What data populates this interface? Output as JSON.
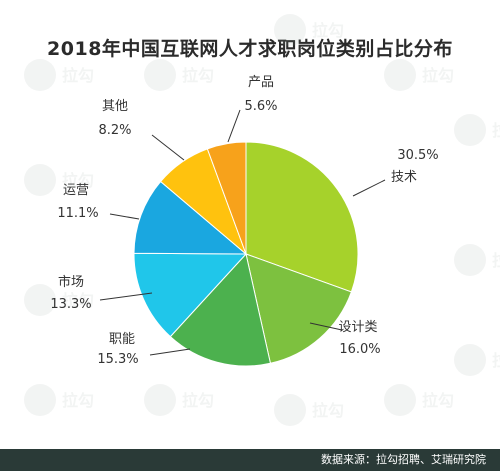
{
  "watermark": {
    "text": "拉勾"
  },
  "footer": {
    "source": "数据来源：拉勾招聘、艾瑞研究院"
  },
  "chart_data": {
    "type": "pie",
    "title": "2018年中国互联网人才求职岗位类别占比分布",
    "slices": [
      {
        "label": "技术",
        "value": 30.5,
        "value_label": "30.5%",
        "color": "#a6d22b"
      },
      {
        "label": "设计类",
        "value": 16.0,
        "value_label": "16.0%",
        "color": "#7dc13f"
      },
      {
        "label": "职能",
        "value": 15.3,
        "value_label": "15.3%",
        "color": "#4cb14e"
      },
      {
        "label": "市场",
        "value": 13.3,
        "value_label": "13.3%",
        "color": "#20c6ea"
      },
      {
        "label": "运营",
        "value": 11.1,
        "value_label": "11.1%",
        "color": "#1aa7e0"
      },
      {
        "label": "其他",
        "value": 8.2,
        "value_label": "8.2%",
        "color": "#ffc20e"
      },
      {
        "label": "产品",
        "value": 5.6,
        "value_label": "5.6%",
        "color": "#f7a21b"
      }
    ]
  }
}
